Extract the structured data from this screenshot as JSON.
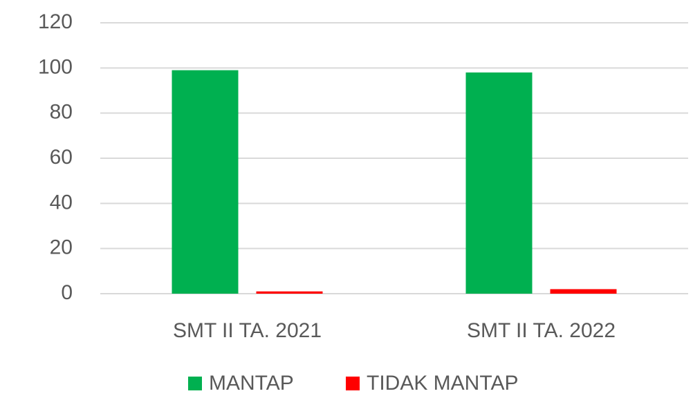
{
  "chart_data": {
    "type": "bar",
    "categories": [
      "SMT II TA. 2021",
      "SMT II TA. 2022"
    ],
    "series": [
      {
        "name": "MANTAP",
        "color": "#00b050",
        "values": [
          99,
          98
        ]
      },
      {
        "name": "TIDAK MANTAP",
        "color": "#ff0000",
        "values": [
          1,
          2
        ]
      }
    ],
    "ylim": [
      0,
      120
    ],
    "yticks": [
      0,
      20,
      40,
      60,
      80,
      100,
      120
    ],
    "grid": true,
    "legend": "bottom"
  }
}
